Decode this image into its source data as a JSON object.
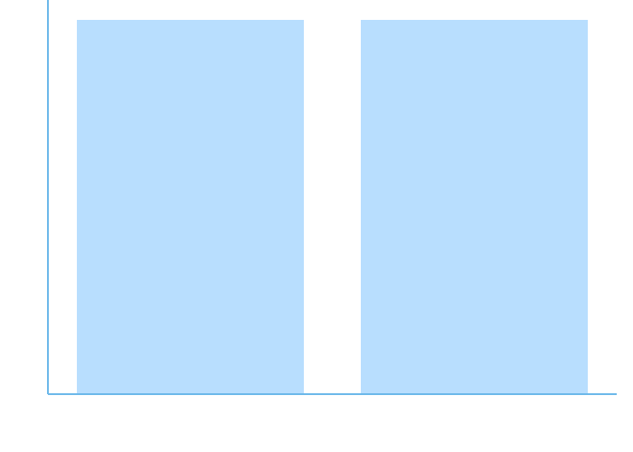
{
  "chart_data": {
    "type": "bar",
    "categories": [
      "",
      ""
    ],
    "values": [
      1,
      1
    ],
    "ylim": [
      0,
      1
    ],
    "grid": false,
    "colors": {
      "bar": "#b8defe",
      "axis": "#6cb8ea",
      "background": "#ffffff"
    }
  }
}
